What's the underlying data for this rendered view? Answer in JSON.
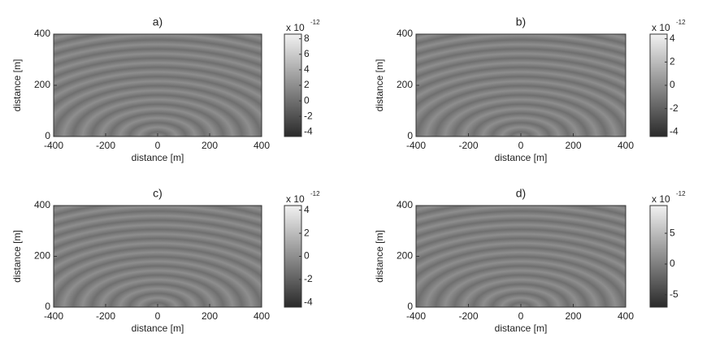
{
  "chart_data": [
    {
      "type": "image",
      "title": "a)",
      "xlabel": "distance [m]",
      "ylabel": "distance [m]",
      "xlim": [
        -400,
        400
      ],
      "xticks": [
        -400,
        -200,
        0,
        200,
        400
      ],
      "ylim": [
        0,
        400
      ],
      "yticks": [
        0,
        200,
        400
      ],
      "clim": [
        -4.6,
        8.6
      ],
      "cticks": [
        8,
        6,
        4,
        2,
        0,
        -2,
        -4
      ],
      "cscale": "x 10",
      "cexponent": "-12"
    },
    {
      "type": "image",
      "title": "b)",
      "xlabel": "distance [m]",
      "ylabel": "distance [m]",
      "xlim": [
        -400,
        400
      ],
      "xticks": [
        -400,
        -200,
        0,
        200,
        400
      ],
      "ylim": [
        0,
        400
      ],
      "yticks": [
        0,
        200,
        400
      ],
      "clim": [
        -4.4,
        4.4
      ],
      "cticks": [
        4,
        2,
        0,
        -2,
        -4
      ],
      "cscale": "x 10",
      "cexponent": "-12"
    },
    {
      "type": "image",
      "title": "c)",
      "xlabel": "distance [m]",
      "ylabel": "distance [m]",
      "xlim": [
        -400,
        400
      ],
      "xticks": [
        -400,
        -200,
        0,
        200,
        400
      ],
      "ylim": [
        0,
        400
      ],
      "yticks": [
        0,
        200,
        400
      ],
      "clim": [
        -4.4,
        4.4
      ],
      "cticks": [
        4,
        2,
        0,
        -2,
        -4
      ],
      "cscale": "x 10",
      "cexponent": "-12"
    },
    {
      "type": "image",
      "title": "d)",
      "xlabel": "distance [m]",
      "ylabel": "distance [m]",
      "xlim": [
        -400,
        400
      ],
      "xticks": [
        -400,
        -200,
        0,
        200,
        400
      ],
      "ylim": [
        0,
        400
      ],
      "yticks": [
        0,
        200,
        400
      ],
      "clim": [
        -7,
        9.5
      ],
      "cticks": [
        5,
        0,
        -5
      ],
      "cscale": "x 10",
      "cexponent": "-12"
    }
  ]
}
